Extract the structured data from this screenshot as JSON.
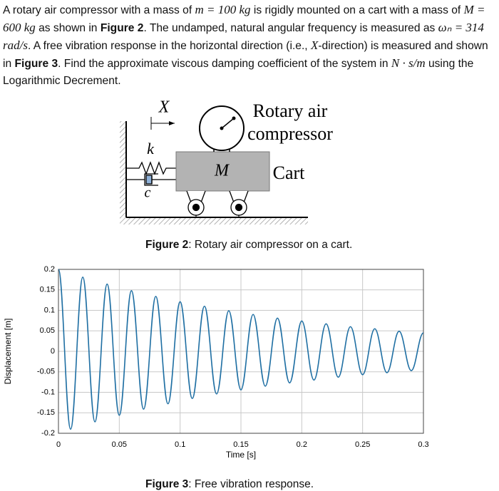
{
  "problem": {
    "segments": [
      {
        "text": "A rotary air compressor with a mass of ",
        "style": "plain"
      },
      {
        "text": "m = 100 kg",
        "style": "math"
      },
      {
        "text": " is rigidly mounted on a cart with a mass of ",
        "style": "plain"
      },
      {
        "text": "M = 600 kg",
        "style": "math"
      },
      {
        "text": " as shown in ",
        "style": "plain"
      },
      {
        "text": "Figure 2",
        "style": "bold"
      },
      {
        "text": ". The undamped, natural angular frequency is measured as ",
        "style": "plain"
      },
      {
        "text": "ωₙ = 314 rad/s",
        "style": "math"
      },
      {
        "text": ". A free vibration response in the horizontal direction (i.e., ",
        "style": "plain"
      },
      {
        "text": "X",
        "style": "math"
      },
      {
        "text": "-direction) is measured and shown in ",
        "style": "plain"
      },
      {
        "text": "Figure 3",
        "style": "bold"
      },
      {
        "text": ". Find the approximate viscous damping coefficient of the system in ",
        "style": "plain"
      },
      {
        "text": "N · s/m",
        "style": "math"
      },
      {
        "text": " using the Logarithmic Decrement.",
        "style": "plain"
      }
    ]
  },
  "figure2": {
    "labels": {
      "x": "X",
      "k": "k",
      "c": "c",
      "mass": "M",
      "compressor_1": "Rotary air",
      "compressor_2": "compressor",
      "cart": "Cart"
    },
    "caption": {
      "label": "Figure 2",
      "text": ": Rotary air compressor on a cart."
    }
  },
  "chart_data": {
    "type": "line",
    "xlabel": "Time [s]",
    "ylabel": "Displacement [m]",
    "color": "#1f6fa3",
    "grid": true,
    "x": [
      0,
      0.01,
      0.02,
      0.03,
      0.04,
      0.05,
      0.06,
      0.07,
      0.08,
      0.09,
      0.1,
      0.11,
      0.12,
      0.13,
      0.14,
      0.15,
      0.16,
      0.17,
      0.18,
      0.19,
      0.2,
      0.21,
      0.22,
      0.23,
      0.24,
      0.25,
      0.26,
      0.27,
      0.28,
      0.29,
      0.3
    ],
    "values": [
      0.2,
      -0.19,
      0.181,
      -0.172,
      0.164,
      -0.156,
      0.148,
      -0.141,
      0.134,
      -0.128,
      0.121,
      -0.115,
      0.11,
      -0.104,
      0.099,
      -0.094,
      0.09,
      -0.085,
      0.081,
      -0.077,
      0.074,
      -0.07,
      0.067,
      -0.063,
      0.06,
      -0.057,
      0.055,
      -0.052,
      0.049,
      -0.047,
      0.045
    ],
    "xlim": [
      0,
      0.3
    ],
    "ylim": [
      -0.2,
      0.2
    ],
    "xticks": [
      0,
      0.05,
      0.1,
      0.15,
      0.2,
      0.25,
      0.3
    ],
    "yticks": [
      0.2,
      0.15,
      0.1,
      0.05,
      0,
      -0.05,
      -0.1,
      -0.15,
      -0.2
    ]
  },
  "figure3_caption": {
    "label": "Figure 3",
    "text": ": Free vibration response."
  }
}
